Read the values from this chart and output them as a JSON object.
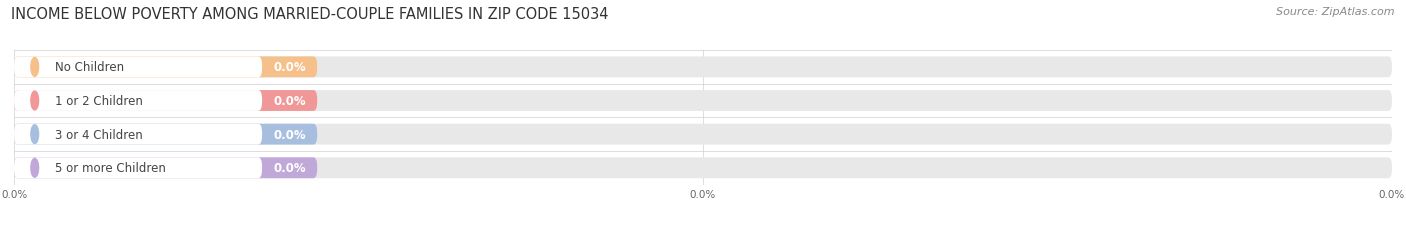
{
  "title": "INCOME BELOW POVERTY AMONG MARRIED-COUPLE FAMILIES IN ZIP CODE 15034",
  "source": "Source: ZipAtlas.com",
  "categories": [
    "No Children",
    "1 or 2 Children",
    "3 or 4 Children",
    "5 or more Children"
  ],
  "values": [
    0.0,
    0.0,
    0.0,
    0.0
  ],
  "bar_colors": [
    "#f5c08a",
    "#f09898",
    "#a8bede",
    "#c0a8d8"
  ],
  "bg_bar_color": "#e8e8e8",
  "label_bg_color": "#ffffff",
  "title_fontsize": 10.5,
  "source_fontsize": 8,
  "label_fontsize": 8.5,
  "value_fontsize": 8.5,
  "fig_width": 14.06,
  "fig_height": 2.32,
  "background_color": "#ffffff",
  "xtick_positions": [
    0,
    50,
    100
  ],
  "xtick_labels": [
    "0.0%",
    "0.0%",
    "0.0%"
  ]
}
